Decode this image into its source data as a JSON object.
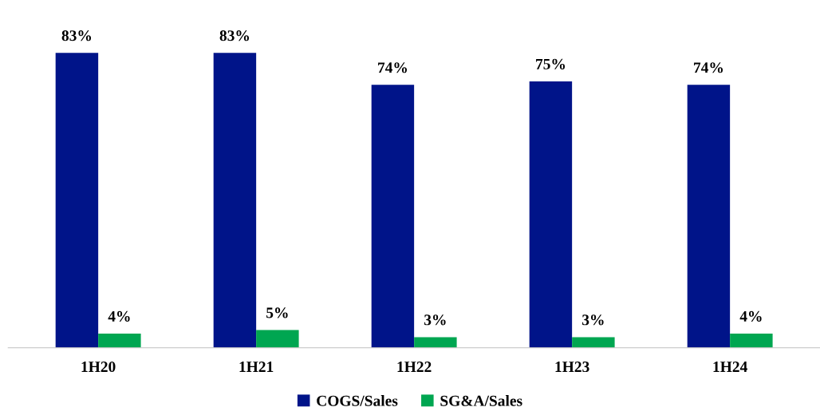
{
  "chart_data": {
    "type": "bar",
    "categories": [
      "1H20",
      "1H21",
      "1H22",
      "1H23",
      "1H24"
    ],
    "series": [
      {
        "name": "COGS/Sales",
        "color": "#001489",
        "values": [
          83,
          83,
          74,
          75,
          74
        ],
        "value_labels": [
          "83%",
          "83%",
          "74%",
          "75%",
          "74%"
        ]
      },
      {
        "name": "SG&A/Sales",
        "color": "#00a651",
        "values": [
          4,
          5,
          3,
          3,
          4
        ],
        "value_labels": [
          "4%",
          "5%",
          "3%",
          "3%",
          "4%"
        ]
      }
    ],
    "legend": "bottom",
    "grid": false
  }
}
